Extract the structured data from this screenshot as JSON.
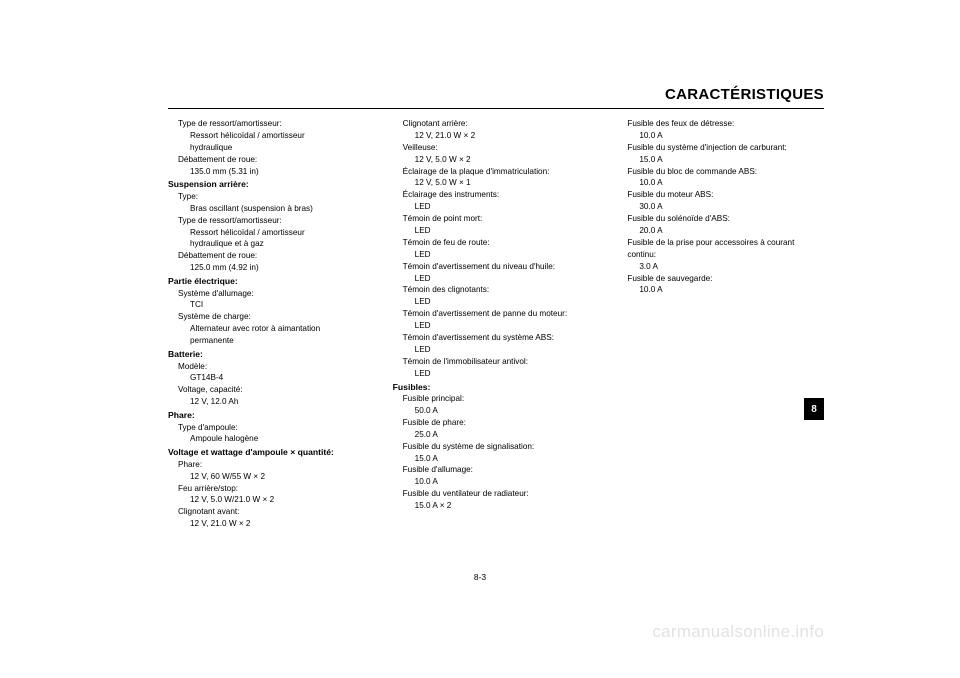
{
  "title": "CARACTÉRISTIQUES",
  "page_number": "8-3",
  "tab": "8",
  "watermark": "carmanualsonline.info",
  "col1": [
    {
      "text": "Type de ressort/amortisseur:",
      "lvl": 1
    },
    {
      "text": "Ressort hélicoïdal / amortisseur",
      "lvl": 2
    },
    {
      "text": "hydraulique",
      "lvl": 2
    },
    {
      "text": "Débattement de roue:",
      "lvl": 1
    },
    {
      "text": "135.0 mm (5.31 in)",
      "lvl": 2
    },
    {
      "text": "Suspension arrière:",
      "head": true
    },
    {
      "text": "Type:",
      "lvl": 1
    },
    {
      "text": "Bras oscillant (suspension à bras)",
      "lvl": 2
    },
    {
      "text": "Type de ressort/amortisseur:",
      "lvl": 1
    },
    {
      "text": "Ressort hélicoïdal / amortisseur",
      "lvl": 2
    },
    {
      "text": "hydraulique et à gaz",
      "lvl": 2
    },
    {
      "text": "Débattement de roue:",
      "lvl": 1
    },
    {
      "text": "125.0 mm (4.92 in)",
      "lvl": 2
    },
    {
      "text": "Partie électrique:",
      "head": true
    },
    {
      "text": "Système d'allumage:",
      "lvl": 1
    },
    {
      "text": "TCI",
      "lvl": 2
    },
    {
      "text": "Système de charge:",
      "lvl": 1
    },
    {
      "text": "Alternateur avec rotor à aimantation",
      "lvl": 2
    },
    {
      "text": "permanente",
      "lvl": 2
    },
    {
      "text": "Batterie:",
      "head": true
    },
    {
      "text": "Modèle:",
      "lvl": 1
    },
    {
      "text": "GT14B-4",
      "lvl": 2
    },
    {
      "text": "Voltage, capacité:",
      "lvl": 1
    },
    {
      "text": "12 V, 12.0 Ah",
      "lvl": 2
    },
    {
      "text": "Phare:",
      "head": true
    },
    {
      "text": "Type d'ampoule:",
      "lvl": 1
    },
    {
      "text": "Ampoule halogène",
      "lvl": 2
    },
    {
      "text": "Voltage et wattage d'ampoule × quantité:",
      "head": true
    },
    {
      "text": "Phare:",
      "lvl": 1
    },
    {
      "text": "12 V, 60 W/55 W × 2",
      "lvl": 2
    },
    {
      "text": "Feu arrière/stop:",
      "lvl": 1
    },
    {
      "text": "12 V, 5.0 W/21.0 W × 2",
      "lvl": 2
    },
    {
      "text": "Clignotant avant:",
      "lvl": 1
    },
    {
      "text": "12 V, 21.0 W × 2",
      "lvl": 2
    }
  ],
  "col2": [
    {
      "text": "Clignotant arrière:",
      "lvl": 1
    },
    {
      "text": "12 V, 21.0 W × 2",
      "lvl": 2
    },
    {
      "text": "Veilleuse:",
      "lvl": 1
    },
    {
      "text": "12 V, 5.0 W × 2",
      "lvl": 2
    },
    {
      "text": "Éclairage de la plaque d'immatriculation:",
      "lvl": 1
    },
    {
      "text": "12 V, 5.0 W × 1",
      "lvl": 2
    },
    {
      "text": "Éclairage des instruments:",
      "lvl": 1
    },
    {
      "text": "LED",
      "lvl": 2
    },
    {
      "text": "Témoin de point mort:",
      "lvl": 1
    },
    {
      "text": "LED",
      "lvl": 2
    },
    {
      "text": "Témoin de feu de route:",
      "lvl": 1
    },
    {
      "text": "LED",
      "lvl": 2
    },
    {
      "text": "Témoin d'avertissement du niveau d'huile:",
      "lvl": 1
    },
    {
      "text": "LED",
      "lvl": 2
    },
    {
      "text": "Témoin des clignotants:",
      "lvl": 1
    },
    {
      "text": "LED",
      "lvl": 2
    },
    {
      "text": "Témoin d'avertissement de panne du moteur:",
      "lvl": 1
    },
    {
      "text": "LED",
      "lvl": 2
    },
    {
      "text": "Témoin d'avertissement du système ABS:",
      "lvl": 1
    },
    {
      "text": "LED",
      "lvl": 2
    },
    {
      "text": "Témoin de l'immobilisateur antivol:",
      "lvl": 1
    },
    {
      "text": "LED",
      "lvl": 2
    },
    {
      "text": "Fusibles:",
      "head": true
    },
    {
      "text": "Fusible principal:",
      "lvl": 1
    },
    {
      "text": "50.0 A",
      "lvl": 2
    },
    {
      "text": "Fusible de phare:",
      "lvl": 1
    },
    {
      "text": "25.0 A",
      "lvl": 2
    },
    {
      "text": "Fusible du système de signalisation:",
      "lvl": 1
    },
    {
      "text": "15.0 A",
      "lvl": 2
    },
    {
      "text": "Fusible d'allumage:",
      "lvl": 1
    },
    {
      "text": "10.0 A",
      "lvl": 2
    },
    {
      "text": "Fusible du ventilateur de radiateur:",
      "lvl": 1
    },
    {
      "text": "15.0 A × 2",
      "lvl": 2
    }
  ],
  "col3": [
    {
      "text": "Fusible des feux de détresse:",
      "lvl": 1
    },
    {
      "text": "10.0 A",
      "lvl": 2
    },
    {
      "text": "Fusible du système d'injection de carburant:",
      "lvl": 1
    },
    {
      "text": "15.0 A",
      "lvl": 2
    },
    {
      "text": "Fusible du bloc de commande ABS:",
      "lvl": 1
    },
    {
      "text": "10.0 A",
      "lvl": 2
    },
    {
      "text": "Fusible du moteur ABS:",
      "lvl": 1
    },
    {
      "text": "30.0 A",
      "lvl": 2
    },
    {
      "text": "Fusible du solénoïde d'ABS:",
      "lvl": 1
    },
    {
      "text": "20.0 A",
      "lvl": 2
    },
    {
      "text": "Fusible de la prise pour accessoires à courant",
      "lvl": 1
    },
    {
      "text": "continu:",
      "lvl": 1
    },
    {
      "text": "3.0 A",
      "lvl": 2
    },
    {
      "text": "Fusible de sauvegarde:",
      "lvl": 1
    },
    {
      "text": "10.0 A",
      "lvl": 2
    }
  ]
}
